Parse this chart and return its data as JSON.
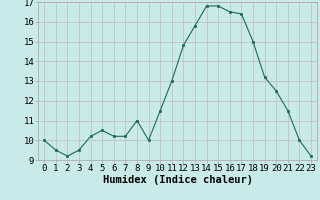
{
  "x": [
    0,
    1,
    2,
    3,
    4,
    5,
    6,
    7,
    8,
    9,
    10,
    11,
    12,
    13,
    14,
    15,
    16,
    17,
    18,
    19,
    20,
    21,
    22,
    23
  ],
  "y": [
    10.0,
    9.5,
    9.2,
    9.5,
    10.2,
    10.5,
    10.2,
    10.2,
    11.0,
    10.0,
    11.5,
    13.0,
    14.8,
    15.8,
    16.8,
    16.8,
    16.5,
    16.4,
    15.0,
    13.2,
    12.5,
    11.5,
    10.0,
    9.2
  ],
  "xlabel": "Humidex (Indice chaleur)",
  "ylim": [
    9,
    17
  ],
  "xlim": [
    -0.5,
    23.5
  ],
  "yticks": [
    9,
    10,
    11,
    12,
    13,
    14,
    15,
    16,
    17
  ],
  "xticks": [
    0,
    1,
    2,
    3,
    4,
    5,
    6,
    7,
    8,
    9,
    10,
    11,
    12,
    13,
    14,
    15,
    16,
    17,
    18,
    19,
    20,
    21,
    22,
    23
  ],
  "line_color": "#1a6b5a",
  "marker_color": "#1a6b5a",
  "bg_color": "#c8eae8",
  "grid_color": "#c4b8b8",
  "xlabel_fontsize": 7.5,
  "tick_fontsize": 6.5,
  "xlabel_fontweight": "bold"
}
